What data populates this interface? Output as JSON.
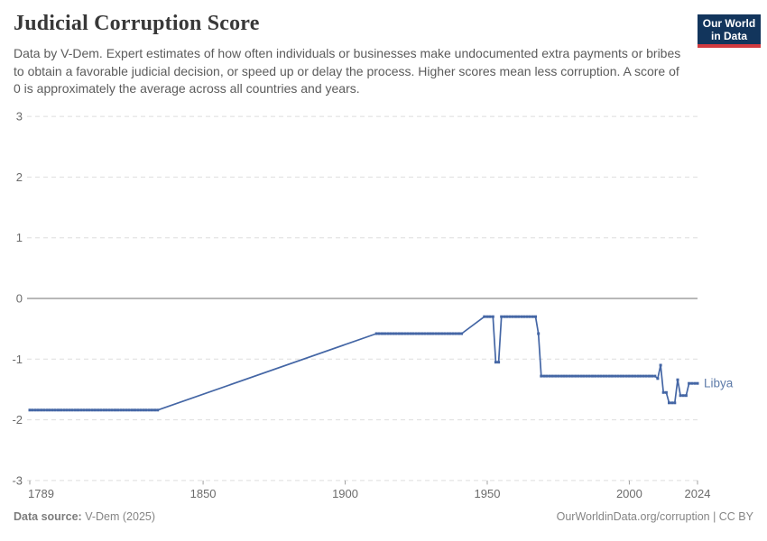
{
  "header": {
    "title": "Judicial Corruption Score",
    "subtitle": "Data by V-Dem. Expert estimates of how often individuals or businesses make undocumented extra payments or bribes to obtain a favorable judicial decision, or speed up or delay the process. Higher scores mean less corruption. A score of 0 is approximately the average across all countries and years.",
    "logo": {
      "line1": "Our World",
      "line2": "in Data",
      "bg_color": "#12355c",
      "bar_color": "#d13a3f"
    }
  },
  "chart_data": {
    "type": "line",
    "title": "Judicial Corruption Score",
    "xlabel": "",
    "ylabel": "",
    "xlim": [
      1789,
      2024
    ],
    "ylim": [
      -3,
      3
    ],
    "x_ticks": [
      {
        "year": 1789,
        "label": "1789"
      },
      {
        "year": 1850,
        "label": "1850"
      },
      {
        "year": 1900,
        "label": "1900"
      },
      {
        "year": 1950,
        "label": "1950"
      },
      {
        "year": 2000,
        "label": "2000"
      },
      {
        "year": 2024,
        "label": "2024"
      }
    ],
    "y_ticks": [
      3,
      2,
      1,
      0,
      -1,
      -2,
      -3
    ],
    "grid": "horizontal-dashed",
    "zero_line": true,
    "legend_position": "end-of-line",
    "series": [
      {
        "name": "Libya",
        "color": "#4466a5",
        "label_color": "#5e7ba9",
        "interpolation": "linear between keypoints; small square markers at yearly observations on flat segments",
        "points": [
          [
            1789,
            -1.84
          ],
          [
            1834,
            -1.84
          ],
          [
            1911,
            -0.58
          ],
          [
            1941,
            -0.58
          ],
          [
            1949,
            -0.3
          ],
          [
            1952,
            -0.3
          ],
          [
            1953,
            -1.05
          ],
          [
            1954,
            -1.05
          ],
          [
            1955,
            -0.3
          ],
          [
            1967,
            -0.3
          ],
          [
            1968,
            -0.58
          ],
          [
            1969,
            -1.28
          ],
          [
            2009,
            -1.28
          ],
          [
            2010,
            -1.32
          ],
          [
            2011,
            -1.1
          ],
          [
            2012,
            -1.55
          ],
          [
            2013,
            -1.55
          ],
          [
            2014,
            -1.72
          ],
          [
            2016,
            -1.72
          ],
          [
            2017,
            -1.34
          ],
          [
            2018,
            -1.6
          ],
          [
            2020,
            -1.6
          ],
          [
            2021,
            -1.4
          ],
          [
            2024,
            -1.4
          ]
        ]
      }
    ],
    "style": {
      "axis_text_color": "#6b6b6b",
      "grid_color": "#dedede",
      "zero_line_color": "#a1a1a1",
      "tick_color": "#a1a1a1"
    }
  },
  "footer": {
    "source_label": "Data source:",
    "source_value": " V-Dem (2025)",
    "right": "OurWorldinData.org/corruption | CC BY"
  }
}
